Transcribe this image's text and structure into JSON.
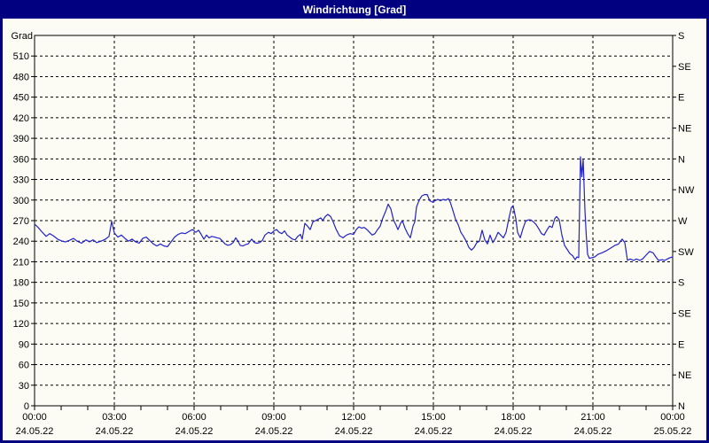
{
  "window": {
    "title": "Windrichtung [Grad]"
  },
  "colors": {
    "titlebar_bg": "#000080",
    "titlebar_text": "#FFFFFF",
    "window_border": "#000080",
    "background": "#FCFCF4",
    "axis": "#000000",
    "grid": "#000000",
    "series_line": "#2222CC"
  },
  "chart_data": {
    "type": "line",
    "title": "Windrichtung [Grad]",
    "y_left_label": "Grad",
    "y_range": [
      0,
      540
    ],
    "y_left_tick_step": 30,
    "y_left_ticks": [
      0,
      30,
      60,
      90,
      120,
      150,
      180,
      210,
      240,
      270,
      300,
      330,
      360,
      390,
      420,
      450,
      480,
      510
    ],
    "y_right_ticks": [
      {
        "value": 0,
        "label": "N"
      },
      {
        "value": 45,
        "label": "NE"
      },
      {
        "value": 90,
        "label": "E"
      },
      {
        "value": 135,
        "label": "SE"
      },
      {
        "value": 180,
        "label": "S"
      },
      {
        "value": 225,
        "label": "SW"
      },
      {
        "value": 270,
        "label": "W"
      },
      {
        "value": 315,
        "label": "NW"
      },
      {
        "value": 360,
        "label": "N"
      },
      {
        "value": 405,
        "label": "NE"
      },
      {
        "value": 450,
        "label": "E"
      },
      {
        "value": 495,
        "label": "SE"
      },
      {
        "value": 540,
        "label": "S"
      }
    ],
    "x_range_minutes": [
      0,
      1440
    ],
    "x_minor_tick_step_minutes": 60,
    "x_major_ticks": [
      {
        "minutes": 0,
        "time": "00:00",
        "date": "24.05.22"
      },
      {
        "minutes": 180,
        "time": "03:00",
        "date": "24.05.22"
      },
      {
        "minutes": 360,
        "time": "06:00",
        "date": "24.05.22"
      },
      {
        "minutes": 540,
        "time": "09:00",
        "date": "24.05.22"
      },
      {
        "minutes": 720,
        "time": "12:00",
        "date": "24.05.22"
      },
      {
        "minutes": 900,
        "time": "15:00",
        "date": "24.05.22"
      },
      {
        "minutes": 1080,
        "time": "18:00",
        "date": "24.05.22"
      },
      {
        "minutes": 1260,
        "time": "21:00",
        "date": "24.05.22"
      },
      {
        "minutes": 1440,
        "time": "00:00",
        "date": "25.05.22"
      }
    ],
    "grid": true,
    "legend": "none",
    "series": [
      {
        "name": "Windrichtung",
        "points": [
          [
            0,
            265
          ],
          [
            8,
            260
          ],
          [
            16,
            254
          ],
          [
            26,
            247
          ],
          [
            34,
            251
          ],
          [
            42,
            248
          ],
          [
            52,
            243
          ],
          [
            62,
            240
          ],
          [
            70,
            239
          ],
          [
            78,
            241
          ],
          [
            88,
            244
          ],
          [
            96,
            240
          ],
          [
            106,
            237
          ],
          [
            116,
            242
          ],
          [
            124,
            239
          ],
          [
            132,
            242
          ],
          [
            140,
            238
          ],
          [
            150,
            240
          ],
          [
            160,
            243
          ],
          [
            168,
            247
          ],
          [
            174,
            269
          ],
          [
            180,
            252
          ],
          [
            188,
            246
          ],
          [
            196,
            249
          ],
          [
            204,
            244
          ],
          [
            212,
            240
          ],
          [
            220,
            243
          ],
          [
            228,
            239
          ],
          [
            236,
            237
          ],
          [
            244,
            244
          ],
          [
            252,
            246
          ],
          [
            260,
            241
          ],
          [
            268,
            236
          ],
          [
            276,
            233
          ],
          [
            284,
            236
          ],
          [
            292,
            233
          ],
          [
            300,
            232
          ],
          [
            308,
            239
          ],
          [
            316,
            246
          ],
          [
            324,
            250
          ],
          [
            332,
            252
          ],
          [
            340,
            251
          ],
          [
            348,
            254
          ],
          [
            356,
            257
          ],
          [
            364,
            253
          ],
          [
            370,
            256
          ],
          [
            376,
            250
          ],
          [
            382,
            243
          ],
          [
            388,
            249
          ],
          [
            394,
            245
          ],
          [
            400,
            247
          ],
          [
            406,
            246
          ],
          [
            412,
            245
          ],
          [
            418,
            244
          ],
          [
            424,
            240
          ],
          [
            430,
            236
          ],
          [
            436,
            234
          ],
          [
            442,
            235
          ],
          [
            448,
            238
          ],
          [
            454,
            245
          ],
          [
            458,
            241
          ],
          [
            464,
            234
          ],
          [
            470,
            233
          ],
          [
            476,
            235
          ],
          [
            482,
            236
          ],
          [
            490,
            243
          ],
          [
            496,
            238
          ],
          [
            502,
            237
          ],
          [
            508,
            238
          ],
          [
            514,
            241
          ],
          [
            520,
            249
          ],
          [
            528,
            253
          ],
          [
            534,
            251
          ],
          [
            540,
            255
          ],
          [
            546,
            257
          ],
          [
            552,
            253
          ],
          [
            558,
            251
          ],
          [
            564,
            255
          ],
          [
            570,
            249
          ],
          [
            576,
            246
          ],
          [
            582,
            243
          ],
          [
            588,
            242
          ],
          [
            594,
            247
          ],
          [
            600,
            250
          ],
          [
            604,
            243
          ],
          [
            610,
            266
          ],
          [
            616,
            262
          ],
          [
            622,
            257
          ],
          [
            628,
            268
          ],
          [
            634,
            270
          ],
          [
            640,
            272
          ],
          [
            646,
            274
          ],
          [
            650,
            270
          ],
          [
            656,
            276
          ],
          [
            662,
            279
          ],
          [
            668,
            276
          ],
          [
            674,
            268
          ],
          [
            680,
            258
          ],
          [
            688,
            248
          ],
          [
            696,
            245
          ],
          [
            704,
            249
          ],
          [
            712,
            251
          ],
          [
            720,
            250
          ],
          [
            726,
            257
          ],
          [
            732,
            261
          ],
          [
            738,
            259
          ],
          [
            744,
            260
          ],
          [
            750,
            257
          ],
          [
            756,
            253
          ],
          [
            762,
            249
          ],
          [
            768,
            251
          ],
          [
            774,
            257
          ],
          [
            780,
            262
          ],
          [
            786,
            274
          ],
          [
            792,
            283
          ],
          [
            798,
            294
          ],
          [
            804,
            287
          ],
          [
            810,
            271
          ],
          [
            816,
            263
          ],
          [
            820,
            257
          ],
          [
            826,
            266
          ],
          [
            830,
            270
          ],
          [
            836,
            259
          ],
          [
            842,
            251
          ],
          [
            848,
            245
          ],
          [
            854,
            262
          ],
          [
            858,
            268
          ],
          [
            862,
            290
          ],
          [
            868,
            300
          ],
          [
            874,
            306
          ],
          [
            880,
            308
          ],
          [
            886,
            308
          ],
          [
            892,
            299
          ],
          [
            898,
            297
          ],
          [
            904,
            299
          ],
          [
            910,
            301
          ],
          [
            916,
            299
          ],
          [
            922,
            301
          ],
          [
            928,
            300
          ],
          [
            934,
            302
          ],
          [
            938,
            297
          ],
          [
            944,
            285
          ],
          [
            950,
            272
          ],
          [
            956,
            264
          ],
          [
            962,
            253
          ],
          [
            968,
            247
          ],
          [
            974,
            240
          ],
          [
            980,
            231
          ],
          [
            986,
            227
          ],
          [
            992,
            231
          ],
          [
            998,
            238
          ],
          [
            1004,
            240
          ],
          [
            1010,
            256
          ],
          [
            1016,
            242
          ],
          [
            1022,
            236
          ],
          [
            1028,
            249
          ],
          [
            1034,
            238
          ],
          [
            1040,
            244
          ],
          [
            1046,
            253
          ],
          [
            1052,
            249
          ],
          [
            1058,
            245
          ],
          [
            1064,
            253
          ],
          [
            1070,
            272
          ],
          [
            1076,
            289
          ],
          [
            1080,
            292
          ],
          [
            1086,
            273
          ],
          [
            1090,
            253
          ],
          [
            1096,
            245
          ],
          [
            1102,
            258
          ],
          [
            1108,
            269
          ],
          [
            1114,
            271
          ],
          [
            1120,
            271
          ],
          [
            1126,
            268
          ],
          [
            1132,
            264
          ],
          [
            1138,
            258
          ],
          [
            1144,
            251
          ],
          [
            1150,
            249
          ],
          [
            1156,
            256
          ],
          [
            1162,
            262
          ],
          [
            1168,
            260
          ],
          [
            1174,
            273
          ],
          [
            1178,
            276
          ],
          [
            1184,
            271
          ],
          [
            1190,
            249
          ],
          [
            1196,
            234
          ],
          [
            1202,
            228
          ],
          [
            1208,
            222
          ],
          [
            1214,
            219
          ],
          [
            1220,
            213
          ],
          [
            1224,
            217
          ],
          [
            1228,
            216
          ],
          [
            1232,
            363
          ],
          [
            1235,
            334
          ],
          [
            1238,
            360
          ],
          [
            1242,
            285
          ],
          [
            1245,
            249
          ],
          [
            1248,
            221
          ],
          [
            1252,
            215
          ],
          [
            1258,
            216
          ],
          [
            1264,
            217
          ],
          [
            1272,
            221
          ],
          [
            1280,
            223
          ],
          [
            1290,
            226
          ],
          [
            1300,
            230
          ],
          [
            1310,
            234
          ],
          [
            1318,
            236
          ],
          [
            1326,
            243
          ],
          [
            1332,
            238
          ],
          [
            1338,
            212
          ],
          [
            1344,
            214
          ],
          [
            1352,
            212
          ],
          [
            1358,
            214
          ],
          [
            1366,
            212
          ],
          [
            1372,
            214
          ],
          [
            1382,
            221
          ],
          [
            1388,
            225
          ],
          [
            1396,
            223
          ],
          [
            1402,
            217
          ],
          [
            1408,
            212
          ],
          [
            1416,
            213
          ],
          [
            1422,
            212
          ],
          [
            1428,
            214
          ],
          [
            1434,
            216
          ],
          [
            1440,
            217
          ]
        ]
      }
    ]
  }
}
